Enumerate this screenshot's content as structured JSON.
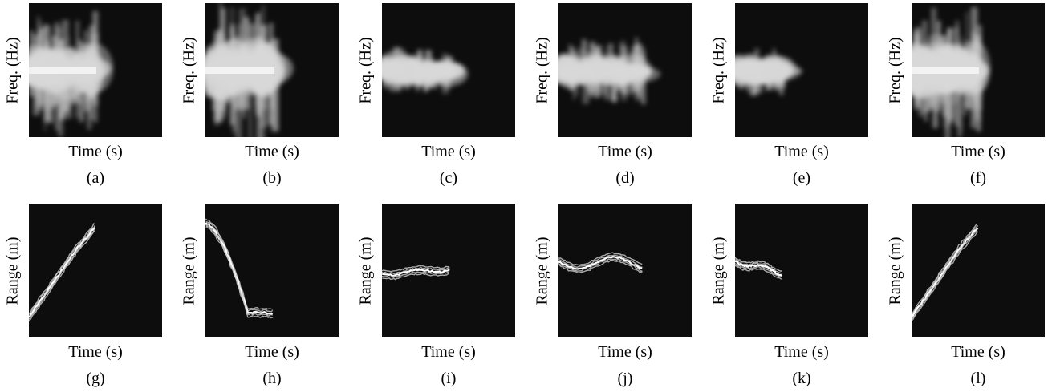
{
  "figure": {
    "panels": [
      {
        "id": "a",
        "caption": "(a)",
        "xlabel": "Time (s)",
        "ylabel": "Freq. (Hz)",
        "kind": "doppler",
        "variant": "fall-long"
      },
      {
        "id": "b",
        "caption": "(b)",
        "xlabel": "Time (s)",
        "ylabel": "Freq. (Hz)",
        "kind": "doppler",
        "variant": "sit"
      },
      {
        "id": "c",
        "caption": "(c)",
        "xlabel": "Time (s)",
        "ylabel": "Freq. (Hz)",
        "kind": "doppler",
        "variant": "walk-small"
      },
      {
        "id": "d",
        "caption": "(d)",
        "xlabel": "Time (s)",
        "ylabel": "Freq. (Hz)",
        "kind": "doppler",
        "variant": "walk-large"
      },
      {
        "id": "e",
        "caption": "(e)",
        "xlabel": "Time (s)",
        "ylabel": "Freq. (Hz)",
        "kind": "doppler",
        "variant": "short"
      },
      {
        "id": "f",
        "caption": "(f)",
        "xlabel": "Time (s)",
        "ylabel": "Freq. (Hz)",
        "kind": "doppler",
        "variant": "fall-long"
      },
      {
        "id": "g",
        "caption": "(g)",
        "xlabel": "Time (s)",
        "ylabel": "Range (m)",
        "kind": "range",
        "variant": "rise"
      },
      {
        "id": "h",
        "caption": "(h)",
        "xlabel": "Time (s)",
        "ylabel": "Range (m)",
        "kind": "range",
        "variant": "fall"
      },
      {
        "id": "i",
        "caption": "(i)",
        "xlabel": "Time (s)",
        "ylabel": "Range (m)",
        "kind": "range",
        "variant": "flat"
      },
      {
        "id": "j",
        "caption": "(j)",
        "xlabel": "Time (s)",
        "ylabel": "Range (m)",
        "kind": "range",
        "variant": "wave"
      },
      {
        "id": "k",
        "caption": "(k)",
        "xlabel": "Time (s)",
        "ylabel": "Range (m)",
        "kind": "range",
        "variant": "short"
      },
      {
        "id": "l",
        "caption": "(l)",
        "xlabel": "Time (s)",
        "ylabel": "Range (m)",
        "kind": "range",
        "variant": "rise"
      }
    ],
    "colors": {
      "plot_background": "#0d0d0d",
      "signal": "#ffffff"
    }
  }
}
